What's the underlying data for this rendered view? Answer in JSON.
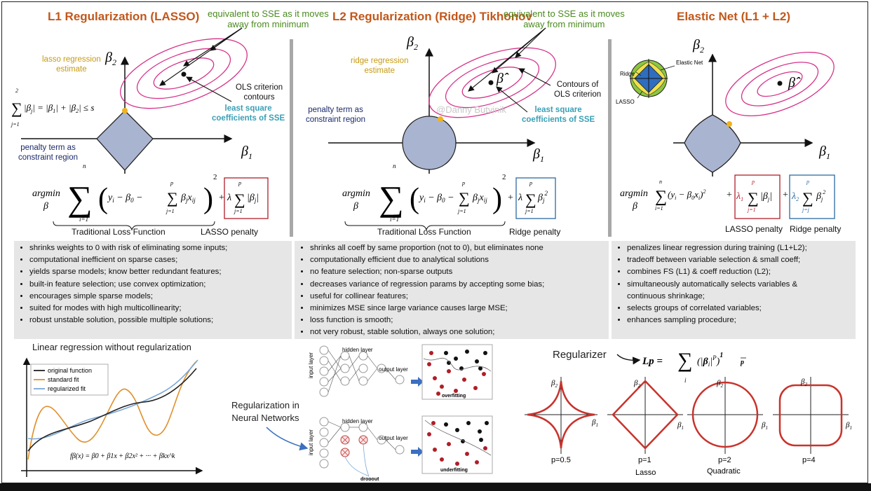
{
  "panels": {
    "l1": {
      "title": "L1 Regularization (LASSO)",
      "sse_note": [
        "equivalent to SSE as it moves",
        "away from minimum"
      ],
      "estimate_label": [
        "lasso regression",
        "estimate"
      ],
      "contours_label": [
        "OLS criterion",
        "contours"
      ],
      "lsq_label": [
        "least square",
        "coefficients of SSE"
      ],
      "penalty_label": [
        "penalty term as",
        "constraint region"
      ],
      "constraint_formula": "∑|βj| = |β1| + |β2| ≤ s",
      "loss_caption": "Traditional Loss Function",
      "penalty_caption": "LASSO penalty",
      "bullets": [
        "shrinks weights to 0 with risk of eliminating some inputs;",
        "computational inefficient on sparse cases;",
        "yields sparse models; know better redundant features;",
        "built-in feature selection; use convex optimization;",
        "encourages simple sparse models;",
        "suited for modes with high multicollinearity;",
        "robust unstable  solution, possible multiple solutions;"
      ]
    },
    "l2": {
      "title": "L2 Regularization (Ridge) Tikhonov",
      "sse_note": [
        "equivalent to SSE as it moves",
        "away from minimum"
      ],
      "estimate_label": [
        "ridge regression",
        "estimate"
      ],
      "contours_label": [
        "Contours of",
        "OLS criterion"
      ],
      "lsq_label": [
        "least square",
        "coefficients of SSE"
      ],
      "penalty_label": [
        "penalty term as",
        "constraint region"
      ],
      "watermark": "@Danny Butvinik",
      "loss_caption": "Traditional Loss Function",
      "penalty_caption": "Ridge penalty",
      "bullets": [
        "shrinks all coeff by same proportion (not to 0),  but eliminates none",
        "computationally efficient due to analytical solutions",
        "no feature selection; non-sparse outputs",
        "decreases variance of regression params by accepting some bias;",
        "useful for collinear features;",
        "minimizes MSE since large variance causes large MSE;",
        "loss function is smooth;",
        "not very robust, stable solution, always one solution;"
      ]
    },
    "en": {
      "title": "Elastic Net (L1 + L2)",
      "inset_labels": {
        "ridge": "Ridge",
        "elastic": "Elastic Net",
        "lasso": "LASSO"
      },
      "lasso_caption": "LASSO penalty",
      "ridge_caption": "Ridge penalty",
      "bullets": [
        "penalizes linear regression during training (L1+L2);",
        "tradeoff between variable selection & small coeff;",
        "combines FS (L1) & coeff reduction (L2);",
        "simultaneously automatically selects variables &",
        "continuous shrinkage;",
        "selects groups of correlated variables;",
        "enhances sampling procedure;"
      ]
    }
  },
  "axis_labels": {
    "b1": "β",
    "b2": "β",
    "sub1": "1",
    "sub2": "2",
    "hat": "β̂"
  },
  "formula": {
    "argmin": "argmin",
    "beta": "β"
  },
  "lr_panel": {
    "title": "Linear regression without regularization",
    "legend": [
      "original function",
      "standard fit",
      "regularized fit"
    ],
    "formula": "fβ(x) = β0 + β1x + β2x² + ··· + βkx^k"
  },
  "nn_panel": {
    "title": [
      "Regularization in",
      "Neural Networks"
    ],
    "hidden_layer": "hidden layer",
    "output_layer": "output layer",
    "input_layer": "input layer",
    "overfitting": "overfitting",
    "underfitting": "underfitting",
    "dropout": "dropout"
  },
  "regularizer_panel": {
    "title": "Regularizer",
    "formula_lhs": "Lp =",
    "shapes": [
      {
        "p_label": "p=0.5",
        "name": ""
      },
      {
        "p_label": "p=1",
        "name": "Lasso"
      },
      {
        "p_label": "p=2",
        "name": "Quadratic"
      },
      {
        "p_label": "p=4",
        "name": ""
      }
    ]
  },
  "colors": {
    "title": "#c2571a",
    "green": "#4a8a1e",
    "gold": "#c79a12",
    "cyan": "#3aa0b5",
    "contour": "#d6338a",
    "region": "#a9b4d0",
    "red": "#b01e28",
    "blue": "#2b6aa3"
  }
}
